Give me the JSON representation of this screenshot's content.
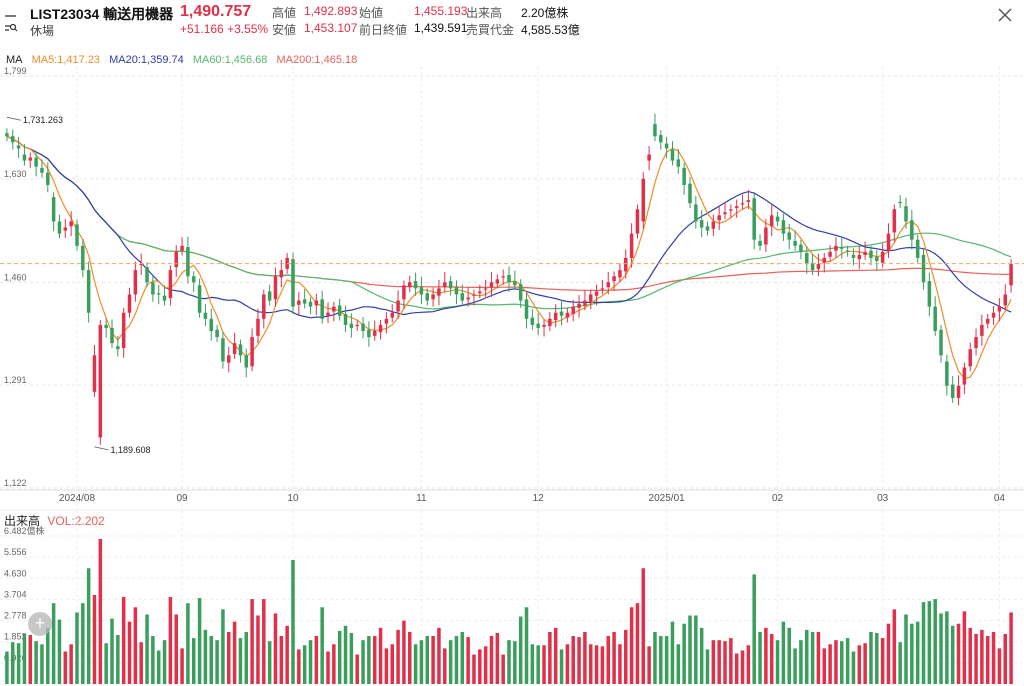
{
  "header": {
    "ticker": "LIST23034",
    "name": "輸送用機器",
    "status": "休場",
    "price": "1,490.757",
    "change": "+51.166",
    "change_pct": "+3.55%",
    "stats": [
      {
        "label": "高値",
        "value": "1,492.893",
        "color": "red"
      },
      {
        "label": "始値",
        "value": "1,455.193",
        "color": "red"
      },
      {
        "label": "出来高",
        "value": "2.20億株",
        "color": "black"
      },
      {
        "label": "安値",
        "value": "1,453.107",
        "color": "red"
      },
      {
        "label": "前日終値",
        "value": "1,439.591",
        "color": "black"
      },
      {
        "label": "売買代金",
        "value": "4,585.53億",
        "color": "black"
      }
    ]
  },
  "ma_legend": {
    "title": "MA",
    "ma5": "MA5:1,417.23",
    "ma20": "MA20:1,359.74",
    "ma60": "MA60:1,456.68",
    "ma200": "MA200:1,465.18"
  },
  "vol_legend": {
    "title": "出来高",
    "vol": "VOL:2.202"
  },
  "colors": {
    "up": "#e0304a",
    "down": "#3a9e5c",
    "ma5": "#f28c28",
    "ma20": "#2f3ea8",
    "ma60": "#55b86e",
    "ma200": "#e8625a",
    "last_price_line": "#f2a35e"
  },
  "chart_data": [
    {
      "type": "candlestick",
      "ylim": [
        1122,
        1799
      ],
      "y_ticks": [
        "1,799",
        "1,630",
        "1,460",
        "1,291",
        "1,122"
      ],
      "y_tick_values": [
        1799,
        1630,
        1460,
        1291,
        1122
      ],
      "x_labels": [
        "2024/08",
        "09",
        "10",
        "11",
        "12",
        "2025/01",
        "02",
        "03",
        "04"
      ],
      "x_label_index": [
        12,
        30,
        49,
        71,
        91,
        113,
        132,
        150,
        170
      ],
      "annotations": [
        {
          "text": "1,731.263",
          "index": 0,
          "value": 1731.263
        },
        {
          "text": "1,189.608",
          "index": 15,
          "value": 1189.608
        }
      ],
      "last_price": 1490.757,
      "close_prices": [
        1700,
        1690,
        1680,
        1660,
        1665,
        1650,
        1640,
        1620,
        1560,
        1540,
        1550,
        1560,
        1520,
        1480,
        1410,
        1340,
        1390,
        1385,
        1360,
        1350,
        1410,
        1440,
        1480,
        1490,
        1460,
        1440,
        1440,
        1430,
        1480,
        1510,
        1520,
        1470,
        1460,
        1410,
        1400,
        1380,
        1370,
        1330,
        1340,
        1360,
        1340,
        1320,
        1370,
        1400,
        1440,
        1430,
        1470,
        1480,
        1500,
        1420,
        1430,
        1425,
        1420,
        1430,
        1400,
        1410,
        1420,
        1405,
        1390,
        1385,
        1390,
        1380,
        1370,
        1380,
        1390,
        1400,
        1410,
        1430,
        1455,
        1460,
        1450,
        1440,
        1430,
        1440,
        1450,
        1460,
        1450,
        1440,
        1430,
        1435,
        1440,
        1445,
        1450,
        1460,
        1465,
        1470,
        1460,
        1455,
        1430,
        1400,
        1390,
        1385,
        1390,
        1400,
        1410,
        1405,
        1410,
        1420,
        1425,
        1430,
        1440,
        1445,
        1450,
        1460,
        1470,
        1480,
        1500,
        1540,
        1580,
        1630,
        1670,
        1700,
        1690,
        1680,
        1660,
        1650,
        1620,
        1590,
        1560,
        1550,
        1545,
        1560,
        1570,
        1575,
        1580,
        1585,
        1590,
        1595,
        1530,
        1520,
        1550,
        1570,
        1560,
        1540,
        1530,
        1520,
        1510,
        1490,
        1480,
        1490,
        1500,
        1510,
        1520,
        1515,
        1510,
        1500,
        1505,
        1510,
        1500,
        1495,
        1510,
        1540,
        1580,
        1590,
        1560,
        1530,
        1500,
        1460,
        1420,
        1380,
        1340,
        1290,
        1270,
        1290,
        1320,
        1350,
        1370,
        1390,
        1400,
        1410,
        1420,
        1440,
        1490
      ],
      "open_prices": [
        1705,
        1700,
        1685,
        1670,
        1660,
        1665,
        1648,
        1640,
        1600,
        1560,
        1545,
        1552,
        1555,
        1520,
        1480,
        1280,
        1205,
        1390,
        1385,
        1355,
        1352,
        1410,
        1440,
        1488,
        1485,
        1460,
        1442,
        1438,
        1434,
        1485,
        1512,
        1518,
        1470,
        1455,
        1410,
        1400,
        1382,
        1368,
        1328,
        1342,
        1358,
        1340,
        1322,
        1372,
        1400,
        1445,
        1432,
        1468,
        1482,
        1498,
        1423,
        1432,
        1428,
        1422,
        1432,
        1405,
        1412,
        1422,
        1408,
        1392,
        1388,
        1392,
        1382,
        1372,
        1378,
        1392,
        1402,
        1412,
        1432,
        1452,
        1462,
        1452,
        1442,
        1432,
        1438,
        1452,
        1462,
        1452,
        1442,
        1432,
        1438,
        1442,
        1448,
        1452,
        1458,
        1468,
        1472,
        1462,
        1457,
        1432,
        1402,
        1392,
        1387,
        1388,
        1398,
        1412,
        1402,
        1408,
        1418,
        1422,
        1428,
        1438,
        1448,
        1452,
        1462,
        1468,
        1478,
        1500,
        1540,
        1560,
        1660,
        1720,
        1702,
        1688,
        1678,
        1662,
        1648,
        1622,
        1588,
        1562,
        1552,
        1548,
        1562,
        1572,
        1578,
        1582,
        1588,
        1592,
        1598,
        1528,
        1522,
        1552,
        1568,
        1562,
        1542,
        1528,
        1522,
        1508,
        1492,
        1482,
        1492,
        1502,
        1512,
        1518,
        1512,
        1505,
        1498,
        1505,
        1512,
        1502,
        1492,
        1512,
        1542,
        1592,
        1585,
        1562,
        1530,
        1505,
        1462,
        1420,
        1382,
        1330,
        1292,
        1270,
        1292,
        1322,
        1352,
        1372,
        1392,
        1402,
        1412,
        1422,
        1455
      ]
    },
    {
      "type": "bar",
      "title": "出来高",
      "ylim": [
        0,
        6.482
      ],
      "y_ticks": [
        "6.482億株",
        "5.556",
        "4.630",
        "3.704",
        "2.778",
        "1.852",
        "0.926"
      ],
      "y_tick_values": [
        6.482,
        5.556,
        4.63,
        3.704,
        2.778,
        1.852,
        0.926
      ],
      "unit": "億株"
    }
  ]
}
